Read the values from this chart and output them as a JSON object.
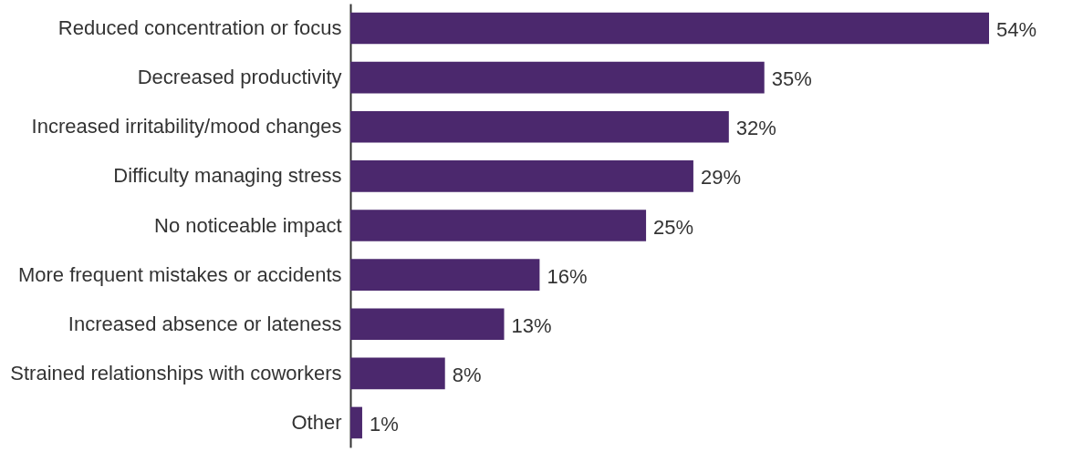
{
  "chart_data": {
    "type": "bar",
    "orientation": "horizontal",
    "categories": [
      "Reduced concentration or focus",
      "Decreased productivity",
      "Increased irritability/mood changes",
      "Difficulty managing stress",
      "No noticeable impact",
      "More frequent mistakes or accidents",
      "Increased absence or lateness",
      "Strained relationships with coworkers",
      "Other"
    ],
    "values": [
      54,
      35,
      32,
      29,
      25,
      16,
      13,
      8,
      1
    ],
    "value_labels": [
      "54%",
      "35%",
      "32%",
      "29%",
      "25%",
      "16%",
      "13%",
      "8%",
      "1%"
    ],
    "color": "#4b286d"
  }
}
